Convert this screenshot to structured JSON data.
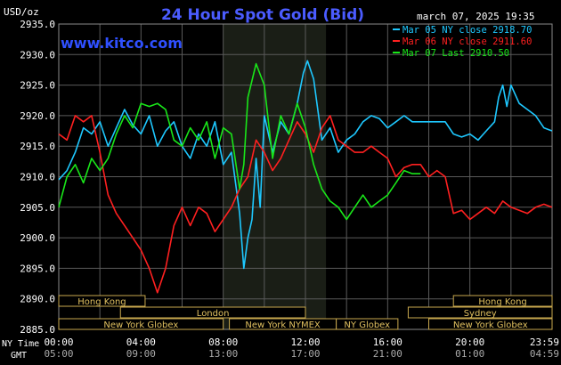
{
  "chart_data": {
    "type": "line",
    "title": "24 Hour Spot Gold (Bid)",
    "site": "www.kitco.com",
    "date_label": "march 07, 2025 19:35",
    "ylabel": "USD/oz",
    "ylim": [
      2885.0,
      2935.0
    ],
    "y_ticks": [
      "2935.0",
      "2930.0",
      "2925.0",
      "2920.0",
      "2915.0",
      "2910.0",
      "2905.0",
      "2900.0",
      "2895.0",
      "2890.0",
      "2885.0"
    ],
    "x_label_ny": "NY Time",
    "x_label_gmt": "GMT",
    "x_ticks_ny": [
      "00:00",
      "04:00",
      "08:00",
      "12:00",
      "16:00",
      "20:00",
      "23:59"
    ],
    "x_ticks_gmt": [
      "05:00",
      "09:00",
      "13:00",
      "17:00",
      "21:00",
      "01:00",
      "04:59"
    ],
    "grid": true,
    "legend_placement": "top-right",
    "colors": {
      "background": "#000000",
      "grid": "#5a5a5a",
      "title": "#4b5cff",
      "site": "#2f50ff",
      "text": "#ffffff",
      "highlight": "#1a1e16",
      "session_border": "#c8a84e",
      "session_text": "#e0c060"
    },
    "series": [
      {
        "name": "Mar 05 NY close 2918.70",
        "color": "#1ec8ff",
        "x": [
          0,
          0.4,
          0.8,
          1.2,
          1.6,
          2.0,
          2.4,
          2.8,
          3.2,
          3.6,
          4.0,
          4.4,
          4.8,
          5.2,
          5.6,
          6.0,
          6.4,
          6.8,
          7.2,
          7.6,
          8.0,
          8.4,
          8.8,
          9.0,
          9.2,
          9.4,
          9.6,
          9.8,
          10.0,
          10.4,
          10.8,
          11.2,
          11.6,
          11.9,
          12.1,
          12.4,
          12.8,
          13.2,
          13.6,
          14.0,
          14.4,
          14.8,
          15.2,
          15.6,
          16.0,
          16.4,
          16.8,
          17.2,
          17.6,
          18.0,
          18.4,
          18.8,
          19.2,
          19.6,
          20.0,
          20.4,
          20.8,
          21.2,
          21.4,
          21.6,
          21.8,
          22.0,
          22.4,
          22.8,
          23.2,
          23.6,
          23.99
        ],
        "values": [
          2909.5,
          2911.0,
          2914.0,
          2918.0,
          2917.0,
          2919.0,
          2915.0,
          2918.0,
          2921.0,
          2918.5,
          2917.0,
          2920.0,
          2915.0,
          2917.5,
          2919.0,
          2915.0,
          2913.0,
          2917.0,
          2915.0,
          2919.0,
          2912.0,
          2914.0,
          2904.0,
          2895.0,
          2900.0,
          2903.0,
          2913.0,
          2905.0,
          2920.0,
          2914.0,
          2919.0,
          2917.0,
          2922.0,
          2927.0,
          2929.0,
          2926.0,
          2916.0,
          2918.0,
          2914.0,
          2916.0,
          2917.0,
          2919.0,
          2920.0,
          2919.5,
          2918.0,
          2919.0,
          2920.0,
          2919.0,
          2919.0,
          2919.0,
          2919.0,
          2919.0,
          2917.0,
          2916.5,
          2917.0,
          2916.0,
          2917.5,
          2919.0,
          2923.0,
          2925.0,
          2921.5,
          2925.0,
          2922.0,
          2921.0,
          2920.0,
          2918.0,
          2917.5
        ]
      },
      {
        "name": "Mar 06 NY close 2911.60",
        "color": "#ff2020",
        "x": [
          0,
          0.4,
          0.8,
          1.2,
          1.6,
          2.0,
          2.4,
          2.8,
          3.2,
          3.6,
          4.0,
          4.4,
          4.8,
          5.2,
          5.6,
          6.0,
          6.4,
          6.8,
          7.2,
          7.6,
          8.0,
          8.4,
          8.8,
          9.2,
          9.6,
          10.0,
          10.4,
          10.8,
          11.2,
          11.6,
          12.0,
          12.4,
          12.8,
          13.2,
          13.6,
          14.0,
          14.4,
          14.8,
          15.2,
          15.6,
          16.0,
          16.4,
          16.8,
          17.2,
          17.6,
          18.0,
          18.4,
          18.8,
          19.2,
          19.6,
          20.0,
          20.4,
          20.8,
          21.2,
          21.6,
          22.0,
          22.4,
          22.8,
          23.2,
          23.6,
          23.99
        ],
        "values": [
          2917.0,
          2916.0,
          2920.0,
          2919.0,
          2920.0,
          2914.0,
          2907.0,
          2904.0,
          2902.0,
          2900.0,
          2898.0,
          2895.0,
          2891.0,
          2895.0,
          2902.0,
          2905.0,
          2902.0,
          2905.0,
          2904.0,
          2901.0,
          2903.0,
          2905.0,
          2908.0,
          2910.0,
          2916.0,
          2914.0,
          2911.0,
          2913.0,
          2916.0,
          2919.0,
          2917.0,
          2914.0,
          2918.0,
          2920.0,
          2916.0,
          2915.0,
          2914.0,
          2914.0,
          2915.0,
          2914.0,
          2913.0,
          2910.0,
          2911.5,
          2912.0,
          2912.0,
          2910.0,
          2911.0,
          2910.0,
          2904.0,
          2904.5,
          2903.0,
          2904.0,
          2905.0,
          2904.0,
          2906.0,
          2905.0,
          2904.5,
          2904.0,
          2905.0,
          2905.5,
          2905.0
        ]
      },
      {
        "name": "Mar 07 Last 2910.50",
        "color": "#19e619",
        "x": [
          0,
          0.4,
          0.8,
          1.2,
          1.6,
          2.0,
          2.4,
          2.8,
          3.2,
          3.6,
          4.0,
          4.4,
          4.8,
          5.2,
          5.6,
          6.0,
          6.4,
          6.8,
          7.2,
          7.6,
          8.0,
          8.4,
          8.8,
          9.0,
          9.2,
          9.6,
          10.0,
          10.4,
          10.8,
          11.2,
          11.6,
          12.0,
          12.4,
          12.8,
          13.2,
          13.6,
          14.0,
          14.4,
          14.8,
          15.2,
          15.6,
          16.0,
          16.4,
          16.8,
          17.2,
          17.6
        ],
        "values": [
          2905.0,
          2910.0,
          2912.0,
          2909.0,
          2913.0,
          2911.0,
          2913.0,
          2917.0,
          2920.0,
          2918.0,
          2922.0,
          2921.5,
          2922.0,
          2921.0,
          2916.0,
          2915.0,
          2918.0,
          2916.0,
          2919.0,
          2913.0,
          2918.0,
          2917.0,
          2908.0,
          2912.0,
          2923.0,
          2928.5,
          2925.0,
          2913.0,
          2920.0,
          2917.0,
          2922.0,
          2918.0,
          2912.0,
          2908.0,
          2906.0,
          2905.0,
          2903.0,
          2905.0,
          2907.0,
          2905.0,
          2906.0,
          2907.0,
          2909.0,
          2911.0,
          2910.5,
          2910.5
        ]
      }
    ],
    "sessions": [
      {
        "label": "Hong Kong",
        "row": 0,
        "start": 0,
        "end": 4.2
      },
      {
        "label": "Hong Kong",
        "row": 0,
        "start": 19.2,
        "end": 24
      },
      {
        "label": "London",
        "row": 1,
        "start": 3.0,
        "end": 12.0
      },
      {
        "label": "Sydney",
        "row": 1,
        "start": 17.0,
        "end": 24
      },
      {
        "label": "New York Globex",
        "row": 2,
        "start": 0,
        "end": 8.0
      },
      {
        "label": "New York NYMEX",
        "row": 2,
        "start": 8.3,
        "end": 13.5
      },
      {
        "label": "NY Globex",
        "row": 2,
        "start": 13.5,
        "end": 16.5
      },
      {
        "label": "New York Globex",
        "row": 2,
        "start": 18.0,
        "end": 24
      }
    ],
    "highlight_range": [
      8.0,
      13.0
    ]
  }
}
